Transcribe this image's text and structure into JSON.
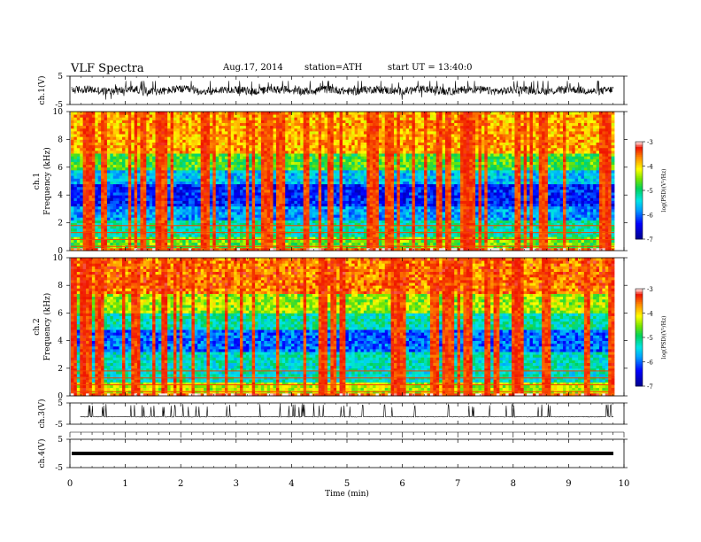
{
  "header": {
    "title": "VLF  Spectra",
    "date": "Aug.17, 2014",
    "station": "station=ATH",
    "start": "start  UT  =   13:40:0"
  },
  "chart_data": [
    {
      "type": "line",
      "ylabel": "ch.1(V)",
      "yticks": [
        "5",
        "-5"
      ],
      "ylim": [
        -5,
        5
      ],
      "xlim": [
        0,
        10
      ],
      "note": "dense noisy waveform centred near 0 V with spikes to about 5 V"
    },
    {
      "type": "heatmap",
      "ylabel_channel": "ch.1",
      "ylabel": "Frequency  (kHz)",
      "yticks": [
        "0",
        "2",
        "4",
        "6",
        "8",
        "10"
      ],
      "ylim": [
        0,
        10
      ],
      "xlim": [
        0,
        10
      ],
      "colorbar": {
        "label": "log(PSD)(V²/Hz)",
        "ticks": [
          "-3",
          "-4",
          "-5",
          "-6",
          "-7"
        ],
        "range": [
          -7,
          -3
        ]
      },
      "bands_khz_logpsd": [
        {
          "from": 0.0,
          "to": 0.3,
          "value": -3.3
        },
        {
          "from": 0.3,
          "to": 1.0,
          "value": -4.6
        },
        {
          "from": 1.0,
          "to": 2.2,
          "value": -5.2
        },
        {
          "from": 2.2,
          "to": 3.2,
          "value": -5.8
        },
        {
          "from": 3.2,
          "to": 4.8,
          "value": -6.3
        },
        {
          "from": 4.8,
          "to": 5.8,
          "value": -5.6
        },
        {
          "from": 5.8,
          "to": 7.0,
          "value": -4.7
        },
        {
          "from": 7.0,
          "to": 10.0,
          "value": -3.8
        }
      ]
    },
    {
      "type": "heatmap",
      "ylabel_channel": "ch.2",
      "ylabel": "Frequency  (kHz)",
      "yticks": [
        "0",
        "2",
        "4",
        "6",
        "8",
        "10"
      ],
      "ylim": [
        0,
        10
      ],
      "xlim": [
        0,
        10
      ],
      "colorbar": {
        "label": "log(PSD)(V²/Hz)",
        "ticks": [
          "-3",
          "-4",
          "-5",
          "-6",
          "-7"
        ],
        "range": [
          -7,
          -3
        ]
      },
      "bands_khz_logpsd": [
        {
          "from": 0.0,
          "to": 0.3,
          "value": -3.3
        },
        {
          "from": 0.3,
          "to": 1.0,
          "value": -4.3
        },
        {
          "from": 1.0,
          "to": 3.2,
          "value": -5.3
        },
        {
          "from": 3.2,
          "to": 4.8,
          "value": -6.0
        },
        {
          "from": 4.8,
          "to": 6.0,
          "value": -5.2
        },
        {
          "from": 6.0,
          "to": 7.5,
          "value": -4.4
        },
        {
          "from": 7.5,
          "to": 10.0,
          "value": -3.6
        }
      ]
    },
    {
      "type": "line",
      "ylabel": "ch.3(V)",
      "yticks": [
        "5",
        "-5"
      ],
      "ylim": [
        -5,
        5
      ],
      "xlim": [
        0,
        10
      ],
      "note": "flat near 0 V with intermittent positive spikes"
    },
    {
      "type": "line",
      "ylabel": "ch.4(V)",
      "yticks": [
        "5",
        "-5"
      ],
      "ylim": [
        -5,
        5
      ],
      "xlim": [
        0,
        10
      ],
      "constant_value": 0
    }
  ],
  "xaxis": {
    "label": "Time  (min)",
    "ticks": [
      "0",
      "1",
      "2",
      "3",
      "4",
      "5",
      "6",
      "7",
      "8",
      "9",
      "10"
    ],
    "range": [
      0,
      10
    ]
  }
}
